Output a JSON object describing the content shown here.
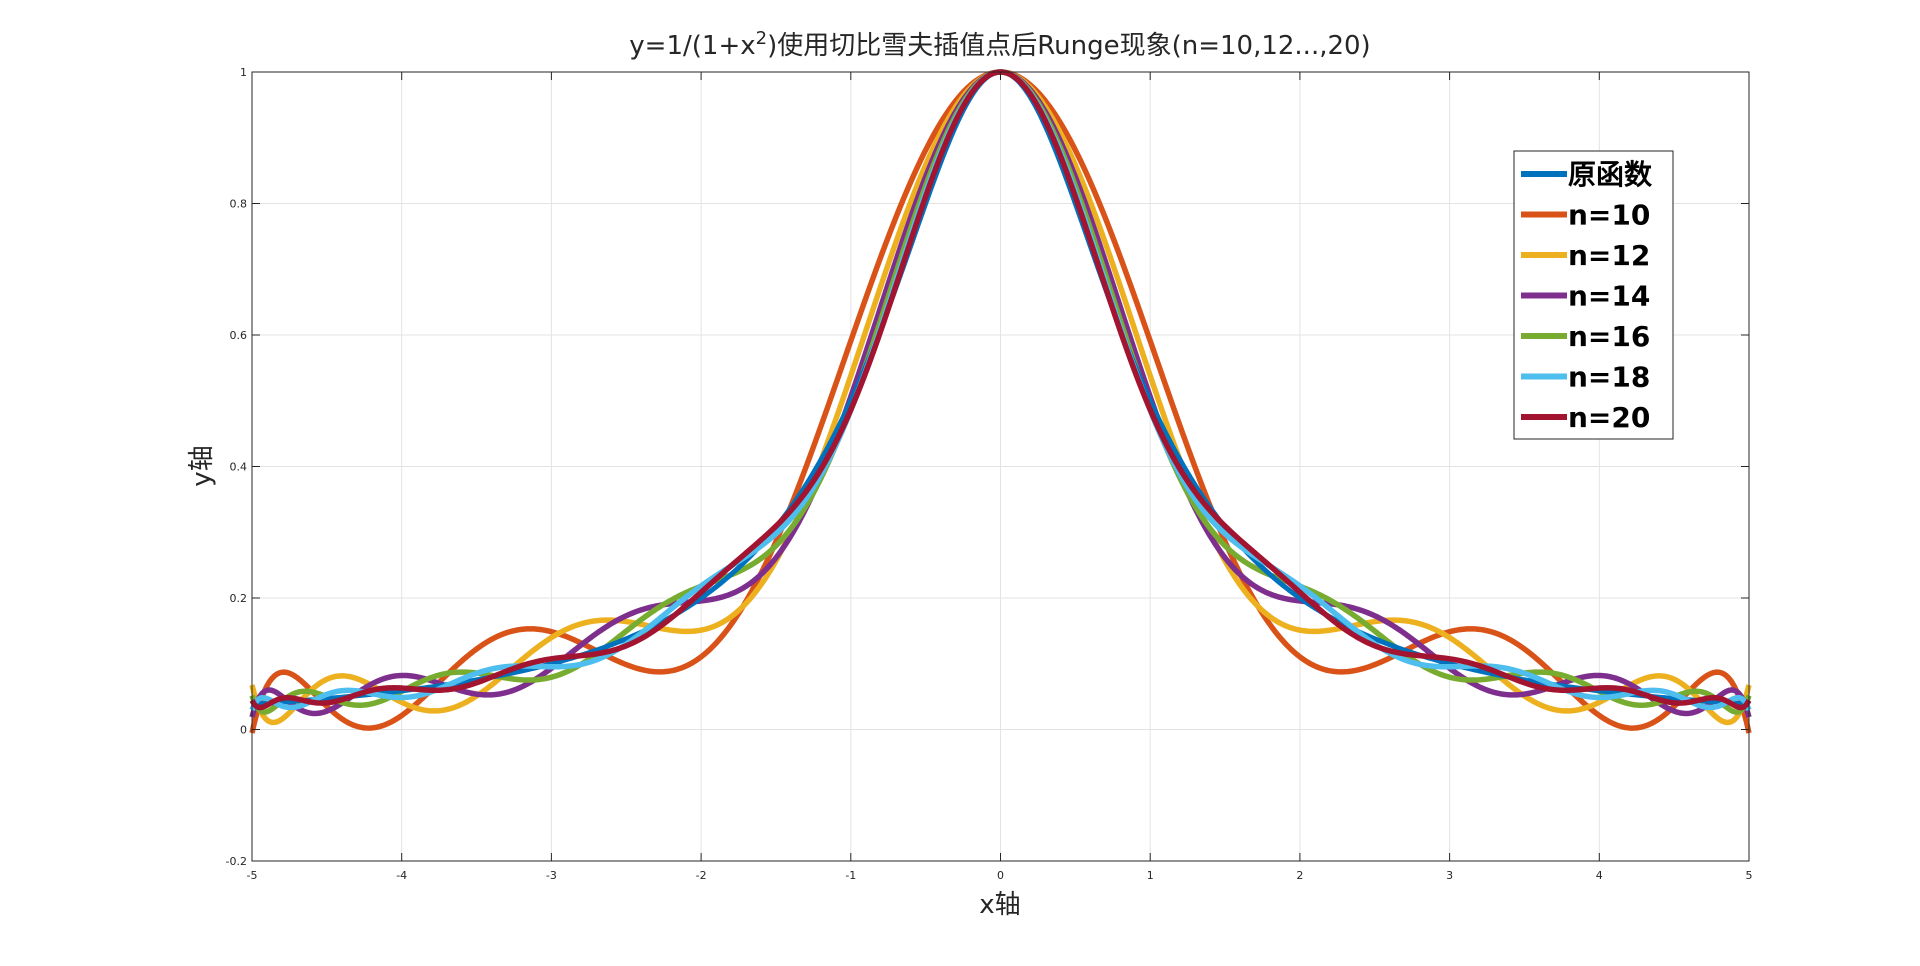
{
  "chart_data": {
    "type": "line",
    "title": "y=1/(1+x²)使用切比雪夫插值点后Runge现象(n=10,12...,20)",
    "xlabel": "x轴",
    "ylabel": "y轴",
    "xlim": [
      -5,
      5
    ],
    "ylim": [
      -0.2,
      1
    ],
    "xticks": [
      "-5",
      "-4",
      "-3",
      "-2",
      "-1",
      "0",
      "1",
      "2",
      "3",
      "4",
      "5"
    ],
    "yticks": [
      "-0.2",
      "0",
      "0.2",
      "0.4",
      "0.6",
      "0.8",
      "1"
    ],
    "grid": true,
    "legend_position": "top-right",
    "series": [
      {
        "name": "原函数",
        "color": "#0072BD",
        "function": "1/(1+x^2)"
      },
      {
        "name": "n=10",
        "color": "#D95319",
        "chebyshev_degree": 10
      },
      {
        "name": "n=12",
        "color": "#EDB120",
        "chebyshev_degree": 12
      },
      {
        "name": "n=14",
        "color": "#7E2F8E",
        "chebyshev_degree": 14
      },
      {
        "name": "n=16",
        "color": "#77AC30",
        "chebyshev_degree": 16
      },
      {
        "name": "n=18",
        "color": "#4DBEEE",
        "chebyshev_degree": 18
      },
      {
        "name": "n=20",
        "color": "#A2142F",
        "chebyshev_degree": 20
      }
    ]
  }
}
